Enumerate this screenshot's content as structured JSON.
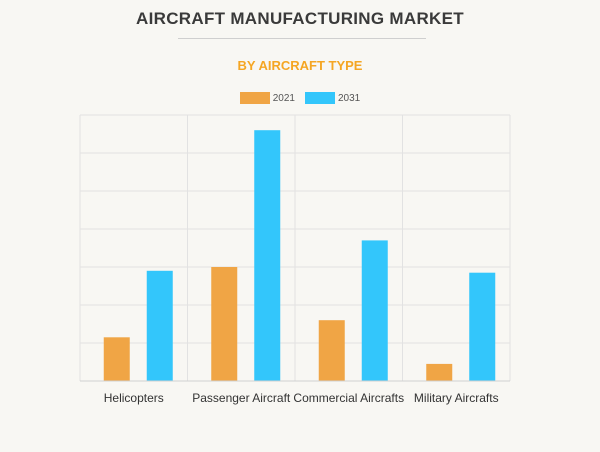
{
  "title": "AIRCRAFT MANUFACTURING MARKET",
  "subtitle": "BY AIRCRAFT TYPE",
  "legend": [
    {
      "label": "2021",
      "color": "#f0a545"
    },
    {
      "label": "2031",
      "color": "#33c6fb"
    }
  ],
  "chart_data": {
    "type": "bar",
    "categories": [
      "Helicopters",
      "Passenger Aircraft",
      "Commercial Aircrafts",
      "Military Aircrafts"
    ],
    "series": [
      {
        "name": "2021",
        "color": "#f0a545",
        "values": [
          11.5,
          30,
          16,
          4.5
        ]
      },
      {
        "name": "2031",
        "color": "#33c6fb",
        "values": [
          29,
          66,
          37,
          28.5
        ]
      }
    ],
    "ylim": [
      0,
      70
    ],
    "grid": true,
    "legend_position": "top-center"
  }
}
